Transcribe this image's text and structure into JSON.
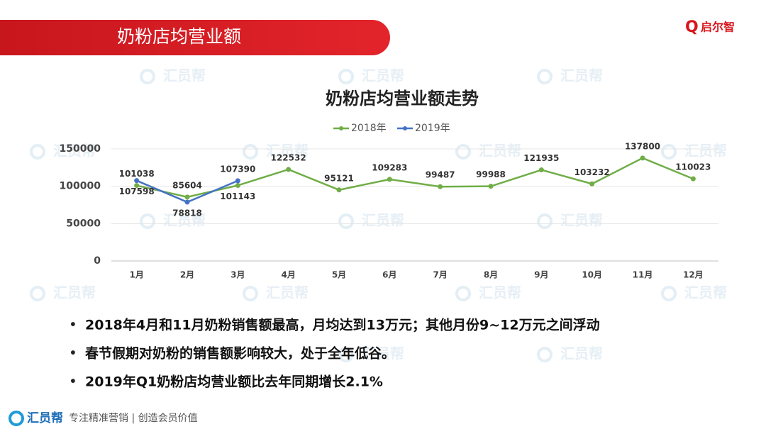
{
  "header": {
    "title": "奶粉店均营业额",
    "logo_mark": "Q",
    "logo": "启尔智"
  },
  "watermark": "汇员帮",
  "chart_data": {
    "type": "line",
    "title": "奶粉店均营业额走势",
    "categories": [
      "1月",
      "2月",
      "3月",
      "4月",
      "5月",
      "6月",
      "7月",
      "8月",
      "9月",
      "10月",
      "11月",
      "12月"
    ],
    "series": [
      {
        "name": "2018年",
        "color": "#70ad47",
        "values": [
          101038,
          85604,
          101143,
          122532,
          95121,
          109283,
          99487,
          99988,
          121935,
          103232,
          137800,
          110023
        ]
      },
      {
        "name": "2019年",
        "color": "#4472c4",
        "values": [
          107598,
          78818,
          107390,
          null,
          null,
          null,
          null,
          null,
          null,
          null,
          null,
          null
        ]
      }
    ],
    "ylim": [
      0,
      150000
    ],
    "yticks": [
      0,
      50000,
      100000,
      150000
    ],
    "grid": true,
    "legend": "top"
  },
  "bullets": [
    "2018年4月和11月奶粉销售额最高，月均达到13万元；其他月份9~12万元之间浮动",
    "春节假期对奶粉的销售额影响较大，处于全年低谷。",
    "2019年Q1奶粉店均营业额比去年同期增长2.1%"
  ],
  "footer": {
    "brand": "汇员帮",
    "slogan": "专注精准营销 | 创造会员价值"
  }
}
